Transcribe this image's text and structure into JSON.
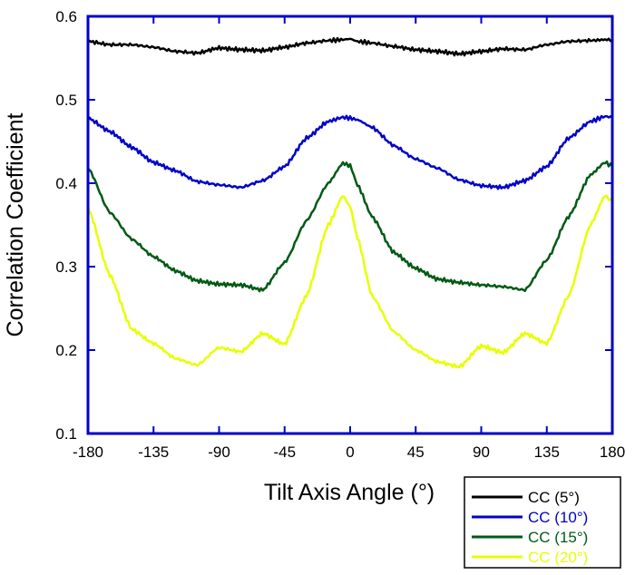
{
  "chart_data": {
    "type": "line",
    "title": "",
    "xlabel": "Tilt Axis Angle (°)",
    "ylabel": "Correlation Coefficient",
    "xlim": [
      -180,
      180
    ],
    "ylim": [
      0.1,
      0.6
    ],
    "x_ticks": [
      -180,
      -135,
      -90,
      -45,
      0,
      45,
      90,
      135,
      180
    ],
    "y_ticks": [
      0.1,
      0.2,
      0.3,
      0.4,
      0.5,
      0.6
    ],
    "x_tick_labels": [
      "-180",
      "-135",
      "-90",
      "-45",
      "0",
      "45",
      "90",
      "135",
      "180"
    ],
    "y_tick_labels": [
      "0.1",
      "0.2",
      "0.3",
      "0.4",
      "0.5",
      "0.6"
    ],
    "grid": false,
    "legend_position": "bottom-right, outside plot",
    "x": [
      -180,
      -165,
      -150,
      -135,
      -120,
      -105,
      -90,
      -75,
      -60,
      -45,
      -30,
      -15,
      -5,
      0,
      5,
      15,
      30,
      45,
      60,
      75,
      90,
      105,
      120,
      135,
      150,
      165,
      175,
      180
    ],
    "series": [
      {
        "name": "CC (5°)",
        "color": "#000000",
        "values": [
          0.57,
          0.566,
          0.566,
          0.563,
          0.558,
          0.556,
          0.562,
          0.56,
          0.559,
          0.563,
          0.568,
          0.571,
          0.572,
          0.573,
          0.57,
          0.568,
          0.564,
          0.56,
          0.558,
          0.555,
          0.558,
          0.561,
          0.56,
          0.566,
          0.57,
          0.571,
          0.572,
          0.572
        ]
      },
      {
        "name": "CC (10°)",
        "color": "#0000c8",
        "values": [
          0.478,
          0.462,
          0.443,
          0.425,
          0.415,
          0.402,
          0.398,
          0.395,
          0.403,
          0.42,
          0.454,
          0.474,
          0.479,
          0.478,
          0.476,
          0.467,
          0.445,
          0.429,
          0.418,
          0.404,
          0.397,
          0.395,
          0.403,
          0.42,
          0.454,
          0.474,
          0.48,
          0.479
        ]
      },
      {
        "name": "CC (15°)",
        "color": "#005a14",
        "values": [
          0.418,
          0.365,
          0.333,
          0.312,
          0.295,
          0.283,
          0.279,
          0.278,
          0.272,
          0.305,
          0.355,
          0.4,
          0.424,
          0.421,
          0.398,
          0.36,
          0.317,
          0.298,
          0.285,
          0.281,
          0.278,
          0.276,
          0.272,
          0.308,
          0.36,
          0.41,
          0.425,
          0.42
        ]
      },
      {
        "name": "CC (20°)",
        "color": "#e6ff00",
        "values": [
          0.37,
          0.29,
          0.225,
          0.208,
          0.19,
          0.182,
          0.203,
          0.198,
          0.22,
          0.207,
          0.265,
          0.35,
          0.385,
          0.372,
          0.335,
          0.265,
          0.222,
          0.2,
          0.186,
          0.18,
          0.205,
          0.197,
          0.22,
          0.208,
          0.265,
          0.35,
          0.385,
          0.378
        ]
      }
    ]
  }
}
